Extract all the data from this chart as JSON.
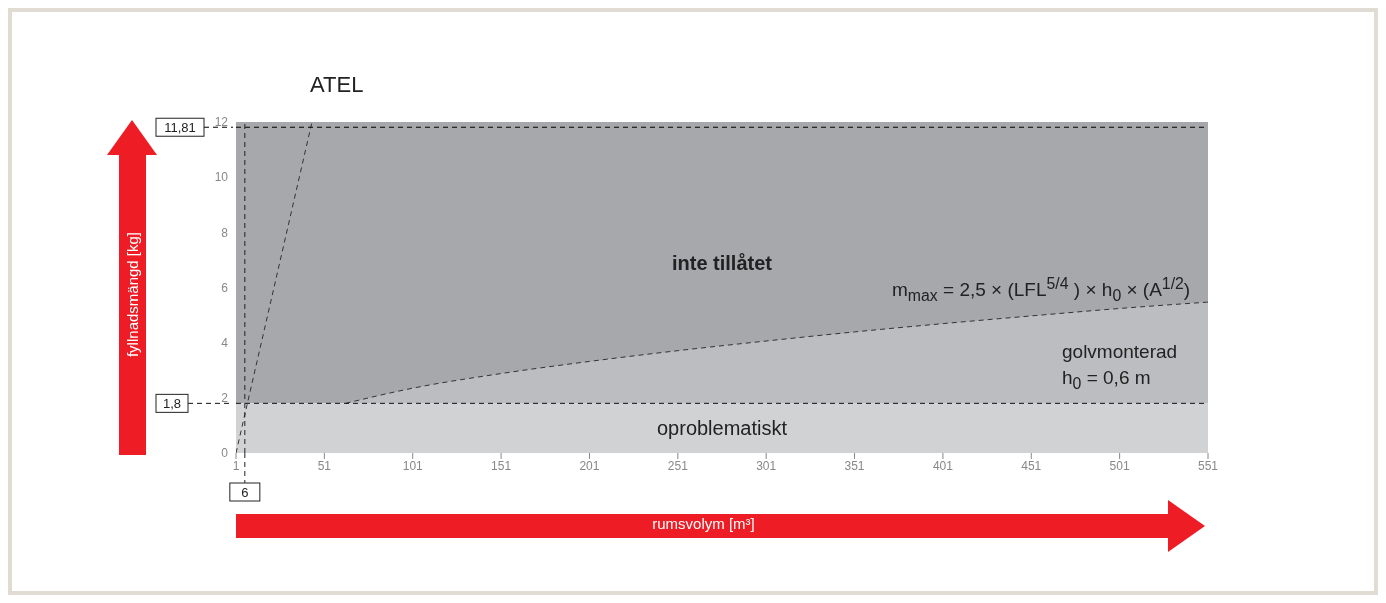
{
  "chart_data": {
    "type": "line",
    "xlabel": "rumsvolym [m³]",
    "ylabel": "fyllnadsmängd [kg]",
    "xlim": [
      1,
      551
    ],
    "xticks": [
      1,
      51,
      101,
      151,
      201,
      251,
      301,
      351,
      401,
      451,
      501,
      551
    ],
    "ylim": [
      0,
      12
    ],
    "yticks": [
      0,
      2,
      4,
      6,
      8,
      10,
      12
    ],
    "grid": false,
    "marker": "none",
    "line_style": "dashed",
    "series": [
      {
        "type": "area",
        "color": "#bcbdc0",
        "x": [
          63,
          101,
          151,
          201,
          251,
          301,
          351,
          401,
          451,
          501,
          551
        ],
        "values": [
          1.8,
          2.35,
          2.88,
          3.32,
          3.71,
          4.06,
          4.39,
          4.69,
          4.97,
          5.24,
          5.47
        ]
      },
      {
        "color": "#333333",
        "x": [
          1,
          44
        ],
        "values": [
          0,
          12
        ]
      }
    ],
    "bands": [
      {
        "axis": "y",
        "from": 1.8,
        "to": 12,
        "label": "inte tillåtet",
        "color": "#a7a8ab"
      },
      {
        "axis": "y",
        "from": 0,
        "to": 1.8,
        "label": "oproblematiskt",
        "color": "#d1d2d4"
      }
    ],
    "ref_lines": [
      {
        "axis": "y",
        "value": 11.81,
        "label": "11,81",
        "line_style": "dashed",
        "color": "#000000"
      },
      {
        "axis": "y",
        "value": 1.8,
        "label": "1,8",
        "line_style": "dashed",
        "color": "#111111"
      },
      {
        "axis": "x",
        "value": 6,
        "label": "6",
        "line_style": "dashed",
        "color": "#222222"
      }
    ],
    "annotations": [
      "ATEL",
      "m$_{max}$ = 2,5 × (LFL$^{5/4}$ ) × h$_{0}$ × (A$^{1/2}$)",
      "golvmonterad",
      "h$_{0}$ = 0,6 m"
    ]
  }
}
